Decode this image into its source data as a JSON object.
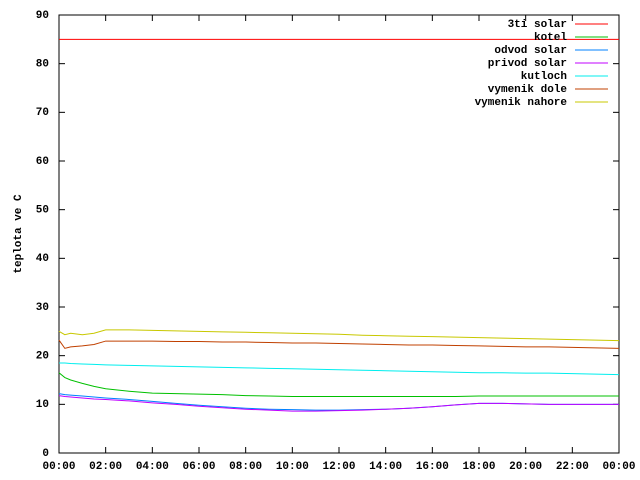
{
  "chart_data": {
    "type": "line",
    "ylabel": "teplota ve C",
    "x": [
      0,
      0.25,
      0.5,
      1,
      1.5,
      2,
      3,
      4,
      5,
      6,
      7,
      8,
      9,
      10,
      11,
      12,
      13,
      14,
      15,
      16,
      17,
      18,
      19,
      20,
      21,
      22,
      23,
      24
    ],
    "xlim": [
      0,
      24
    ],
    "xticks": [
      {
        "value": 0,
        "label": "00:00"
      },
      {
        "value": 2,
        "label": "02:00"
      },
      {
        "value": 4,
        "label": "04:00"
      },
      {
        "value": 6,
        "label": "06:00"
      },
      {
        "value": 8,
        "label": "08:00"
      },
      {
        "value": 10,
        "label": "10:00"
      },
      {
        "value": 12,
        "label": "12:00"
      },
      {
        "value": 14,
        "label": "14:00"
      },
      {
        "value": 16,
        "label": "16:00"
      },
      {
        "value": 18,
        "label": "18:00"
      },
      {
        "value": 20,
        "label": "20:00"
      },
      {
        "value": 22,
        "label": "22:00"
      },
      {
        "value": 24,
        "label": "00:00"
      }
    ],
    "ylim": [
      0,
      90
    ],
    "yticks": [
      0,
      10,
      20,
      30,
      40,
      50,
      60,
      70,
      80,
      90
    ],
    "legend": "top-right",
    "series": [
      {
        "name": "3ti solar",
        "color": "#ff0000",
        "values": [
          85,
          85,
          85,
          85,
          85,
          85,
          85,
          85,
          85,
          85,
          85,
          85,
          85,
          85,
          85,
          85,
          85,
          85,
          85,
          85,
          85,
          85,
          85,
          85,
          85,
          85,
          85,
          85
        ]
      },
      {
        "name": "kotel",
        "color": "#00c000",
        "values": [
          16.5,
          15.5,
          15,
          14.3,
          13.7,
          13.2,
          12.7,
          12.3,
          12.2,
          12.1,
          12,
          11.8,
          11.7,
          11.6,
          11.6,
          11.6,
          11.6,
          11.6,
          11.6,
          11.6,
          11.6,
          11.7,
          11.7,
          11.7,
          11.7,
          11.7,
          11.7,
          11.7
        ]
      },
      {
        "name": "odvod solar",
        "color": "#0080ff",
        "values": [
          12.2,
          12,
          11.9,
          11.7,
          11.5,
          11.3,
          11,
          10.6,
          10.2,
          9.8,
          9.5,
          9.2,
          9,
          8.9,
          8.8,
          8.8,
          8.9,
          9,
          9.2,
          9.5,
          9.9,
          10.2,
          10.2,
          10.1,
          10,
          10,
          10,
          10
        ]
      },
      {
        "name": "privod solar",
        "color": "#c000ff",
        "values": [
          11.8,
          11.6,
          11.5,
          11.3,
          11.1,
          11,
          10.7,
          10.3,
          10,
          9.6,
          9.3,
          9,
          8.8,
          8.6,
          8.6,
          8.7,
          8.8,
          9,
          9.2,
          9.5,
          9.9,
          10.2,
          10.2,
          10.1,
          10,
          10,
          10,
          10
        ]
      },
      {
        "name": "kutloch",
        "color": "#00eeee",
        "values": [
          18.5,
          18.5,
          18.4,
          18.3,
          18.2,
          18.1,
          18,
          17.9,
          17.8,
          17.7,
          17.6,
          17.5,
          17.4,
          17.3,
          17.2,
          17.1,
          17,
          16.9,
          16.8,
          16.7,
          16.6,
          16.5,
          16.5,
          16.4,
          16.4,
          16.3,
          16.2,
          16.1
        ]
      },
      {
        "name": "vymenik dole",
        "color": "#c04000",
        "values": [
          23.2,
          21.5,
          21.8,
          22,
          22.3,
          23,
          23,
          23,
          22.9,
          22.9,
          22.8,
          22.8,
          22.7,
          22.6,
          22.6,
          22.5,
          22.4,
          22.3,
          22.2,
          22.2,
          22.1,
          22,
          21.9,
          21.8,
          21.8,
          21.7,
          21.6,
          21.5
        ]
      },
      {
        "name": "vymenik nahore",
        "color": "#c8c800",
        "values": [
          25,
          24.3,
          24.6,
          24.3,
          24.6,
          25.3,
          25.3,
          25.2,
          25.1,
          25,
          24.9,
          24.8,
          24.7,
          24.6,
          24.5,
          24.4,
          24.2,
          24.1,
          24,
          23.9,
          23.8,
          23.7,
          23.6,
          23.5,
          23.4,
          23.3,
          23.2,
          23.1
        ]
      }
    ]
  }
}
